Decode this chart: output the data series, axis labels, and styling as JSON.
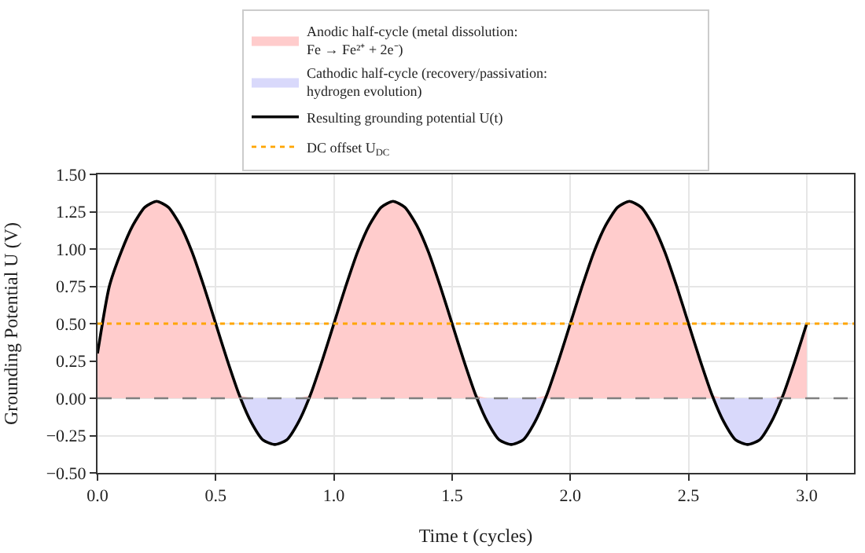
{
  "chart_data": {
    "type": "line",
    "xlabel": "Time t (cycles)",
    "ylabel": "Grounding Potential U (V)",
    "x": [
      0,
      0.05,
      0.1,
      0.15,
      0.2,
      0.25,
      0.3,
      0.35,
      0.4,
      0.45,
      0.5,
      0.55,
      0.6,
      0.65,
      0.7,
      0.75,
      0.8,
      0.85,
      0.9,
      0.95,
      1.0,
      1.05,
      1.1,
      1.15,
      1.2,
      1.25,
      1.3,
      1.35,
      1.4,
      1.45,
      1.5,
      1.55,
      1.6,
      1.65,
      1.7,
      1.75,
      1.8,
      1.85,
      1.9,
      1.95,
      2.0,
      2.05,
      2.1,
      2.15,
      2.2,
      2.25,
      2.3,
      2.35,
      2.4,
      2.45,
      2.5,
      2.55,
      2.6,
      2.65,
      2.7,
      2.75,
      2.8,
      2.85,
      2.9,
      2.95,
      3.0
    ],
    "series": [
      {
        "type": "area",
        "name": "Anodic half-cycle (metal dissolution:\nFe → Fe²⁺ + 2e⁻)",
        "color": "#ffcccc",
        "values": [
          0.3,
          0.75,
          0.98,
          1.16,
          1.28,
          1.32,
          1.28,
          1.16,
          0.98,
          0.75,
          0.5,
          0.25,
          0.02,
          0,
          0,
          0,
          0,
          0,
          0.02,
          0.25,
          0.5,
          0.75,
          0.98,
          1.16,
          1.28,
          1.32,
          1.28,
          1.16,
          0.98,
          0.75,
          0.5,
          0.25,
          0.02,
          0,
          0,
          0,
          0,
          0,
          0.02,
          0.25,
          0.5,
          0.75,
          0.98,
          1.16,
          1.28,
          1.32,
          1.28,
          1.16,
          0.98,
          0.75,
          0.5,
          0.25,
          0.02,
          0,
          0,
          0,
          0,
          0,
          0.02,
          0.25,
          0.5
        ]
      },
      {
        "type": "area",
        "name": "Cathodic half-cycle (recovery/passivation:\nhydrogen evolution)",
        "color": "#d9d9fb",
        "values": [
          0,
          0,
          0,
          0,
          0,
          0,
          0,
          0,
          0,
          0,
          0,
          0,
          0,
          -0.16,
          -0.28,
          -0.31,
          -0.28,
          -0.16,
          0,
          0,
          0,
          0,
          0,
          0,
          0,
          0,
          0,
          0,
          0,
          0,
          0,
          0,
          0,
          -0.16,
          -0.28,
          -0.31,
          -0.28,
          -0.16,
          0,
          0,
          0,
          0,
          0,
          0,
          0,
          0,
          0,
          0,
          0,
          0,
          0,
          0,
          0,
          -0.16,
          -0.28,
          -0.31,
          -0.28,
          -0.16,
          0,
          0,
          0
        ]
      },
      {
        "name": "Resulting grounding potential U(t)",
        "color": "#000000",
        "line_style": "solid",
        "values": [
          0.3,
          0.75,
          0.98,
          1.16,
          1.28,
          1.32,
          1.28,
          1.16,
          0.98,
          0.75,
          0.5,
          0.25,
          0.02,
          -0.16,
          -0.28,
          -0.31,
          -0.28,
          -0.16,
          0.02,
          0.25,
          0.5,
          0.75,
          0.98,
          1.16,
          1.28,
          1.32,
          1.28,
          1.16,
          0.98,
          0.75,
          0.5,
          0.25,
          0.02,
          -0.16,
          -0.28,
          -0.31,
          -0.28,
          -0.16,
          0.02,
          0.25,
          0.5,
          0.75,
          0.98,
          1.16,
          1.28,
          1.32,
          1.28,
          1.16,
          0.98,
          0.75,
          0.5,
          0.25,
          0.02,
          -0.16,
          -0.28,
          -0.31,
          -0.28,
          -0.16,
          0.02,
          0.25,
          0.5
        ]
      },
      {
        "type": "line",
        "name": "DC offset U$_{DC}$",
        "color": "#ffa500",
        "line_style": "dotted",
        "x": [
          0,
          3.2
        ],
        "values": [
          0.5,
          0.5
        ]
      }
    ],
    "ref_lines": [
      {
        "axis": "y",
        "value": 0,
        "color": "#808080",
        "line_style": "dashed"
      }
    ],
    "xlim": [
      0,
      3.2
    ],
    "xticks": [
      {
        "value": 0,
        "label": "0.0"
      },
      {
        "value": 0.5,
        "label": "0.5"
      },
      {
        "value": 1,
        "label": "1.0"
      },
      {
        "value": 1.5,
        "label": "1.5"
      },
      {
        "value": 2,
        "label": "2.0"
      },
      {
        "value": 2.5,
        "label": "2.5"
      },
      {
        "value": 3,
        "label": "3.0"
      }
    ],
    "ylim": [
      -0.5,
      1.5
    ],
    "yticks": [
      {
        "value": -0.5,
        "label": "−0.50"
      },
      {
        "value": -0.25,
        "label": "−0.25"
      },
      {
        "value": 0,
        "label": "0.00"
      },
      {
        "value": 0.25,
        "label": "0.25"
      },
      {
        "value": 0.5,
        "label": "0.50"
      },
      {
        "value": 0.75,
        "label": "0.75"
      },
      {
        "value": 1,
        "label": "1.00"
      },
      {
        "value": 1.25,
        "label": "1.25"
      },
      {
        "value": 1.5,
        "label": "1.50"
      }
    ],
    "grid": true,
    "legend": "top",
    "marker": "none"
  }
}
